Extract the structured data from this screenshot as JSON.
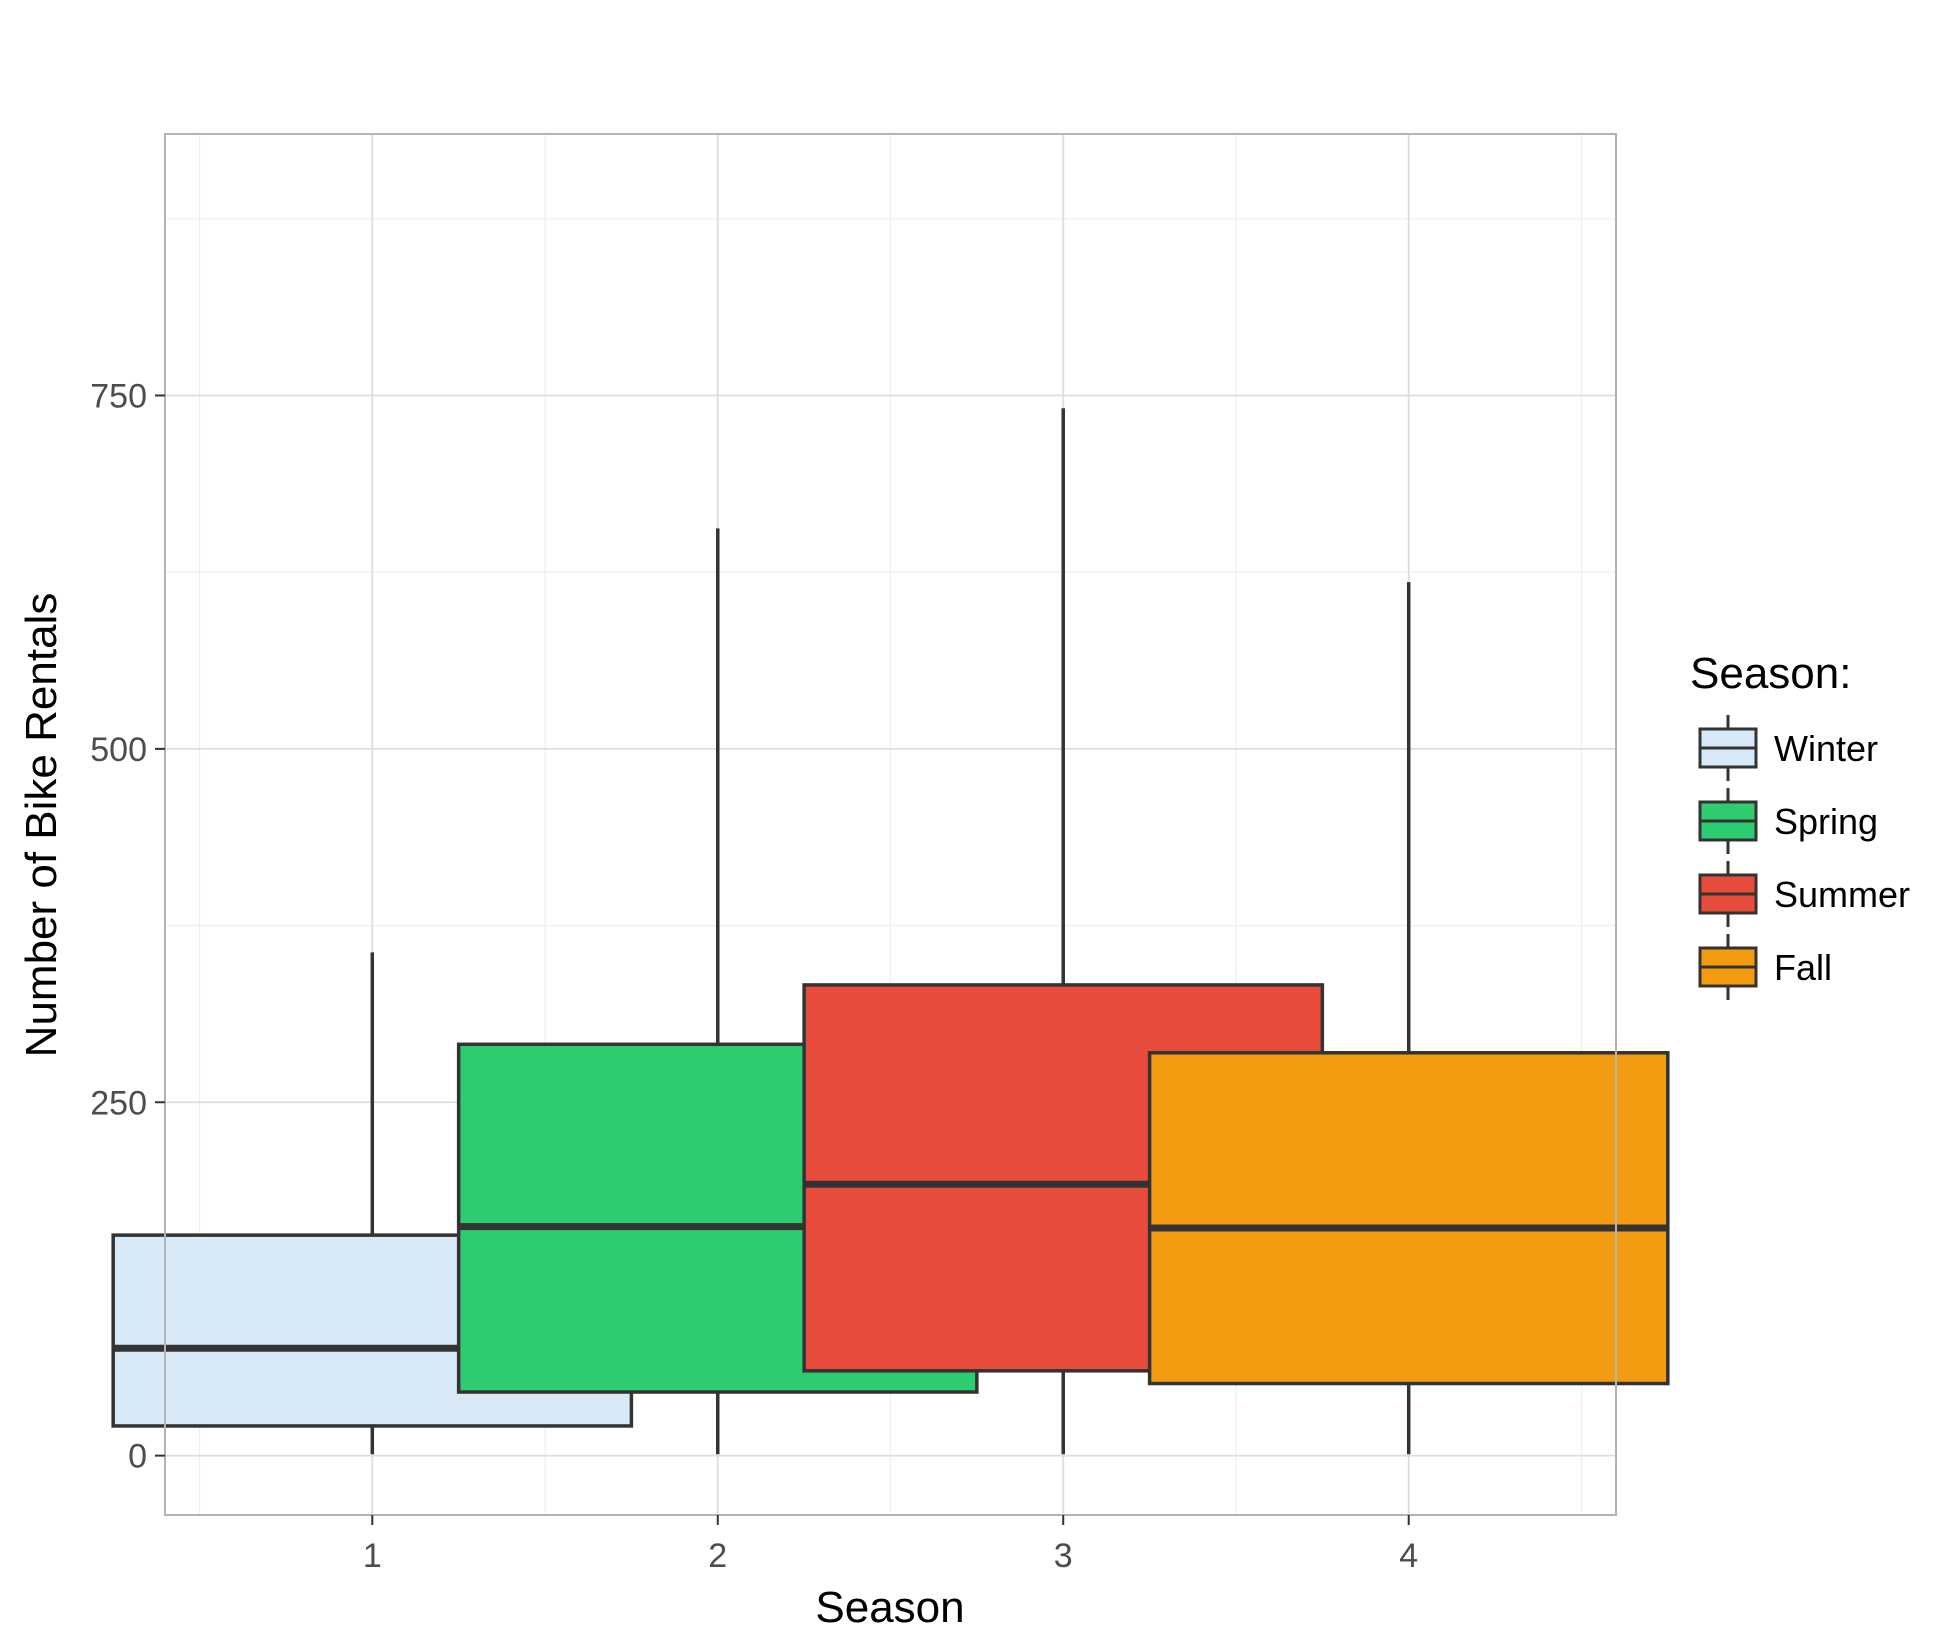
{
  "chart_data": {
    "type": "boxplot",
    "title": "",
    "xlabel": "Season",
    "ylabel": "Number of Bike Rentals",
    "ylim": [
      -42,
      935
    ],
    "y_ticks": [
      0,
      250,
      500,
      750
    ],
    "y_tick_labels": [
      "0",
      "250",
      "500",
      "750"
    ],
    "grid": true,
    "legend": {
      "title": "Season:",
      "placement": "right",
      "entries": [
        {
          "label": "Winter",
          "color": "#d8e9f7"
        },
        {
          "label": "Spring",
          "color": "#2ecc71"
        },
        {
          "label": "Summer",
          "color": "#e74c3c"
        },
        {
          "label": "Fall",
          "color": "#f39c12"
        }
      ]
    },
    "categories": [
      "1",
      "2",
      "3",
      "4"
    ],
    "boxes": [
      {
        "category": "1",
        "name": "Winter",
        "color": "#d8e9f7",
        "whisker_low": 1,
        "q1": 21,
        "median": 76,
        "q3": 156,
        "whisker_high": 356
      },
      {
        "category": "2",
        "name": "Spring",
        "color": "#2ecc71",
        "whisker_low": 1,
        "q1": 45,
        "median": 162,
        "q3": 291,
        "whisker_high": 656
      },
      {
        "category": "3",
        "name": "Summer",
        "color": "#e74c3c",
        "whisker_low": 1,
        "q1": 60,
        "median": 192,
        "q3": 333,
        "whisker_high": 741
      },
      {
        "category": "4",
        "name": "Fall",
        "color": "#f39c12",
        "whisker_low": 1,
        "q1": 51,
        "median": 161,
        "q3": 285,
        "whisker_high": 618
      }
    ],
    "colors": {
      "outline": "#333333",
      "grid_major": "#dddddd",
      "grid_minor": "#eeeeee",
      "panel_border": "#b3b3b3",
      "tick_text": "#4d4d4d",
      "label_text": "#000000"
    }
  }
}
